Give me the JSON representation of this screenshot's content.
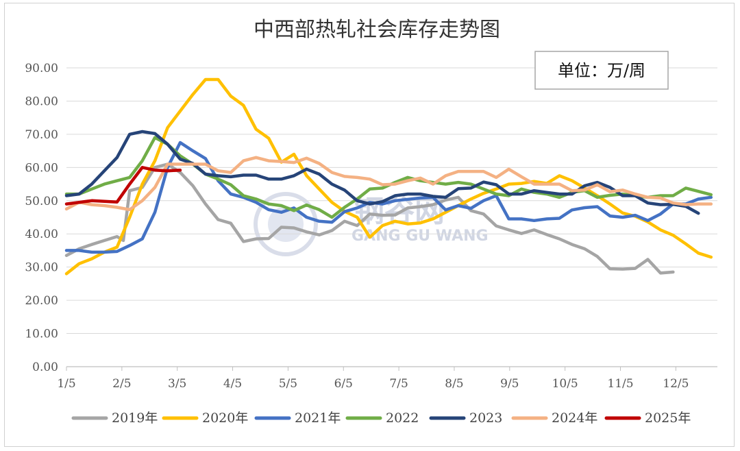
{
  "chart_data": {
    "type": "line",
    "title": "中西部热轧社会库存走势图",
    "unit_note": "单位：万/周",
    "watermark": "钢谷网",
    "watermark_sub": "GANG GU WANG",
    "xlabel": "",
    "ylabel": "",
    "x_ticks": [
      "1/5",
      "2/5",
      "3/5",
      "4/5",
      "5/5",
      "6/5",
      "7/5",
      "8/5",
      "9/5",
      "10/5",
      "11/5",
      "12/5"
    ],
    "y_ticks": [
      "0.00",
      "10.00",
      "20.00",
      "30.00",
      "40.00",
      "50.00",
      "60.00",
      "70.00",
      "80.00",
      "90.00"
    ],
    "ylim": [
      0,
      90
    ],
    "xlim_weeks": [
      0,
      51.5
    ],
    "grid": "horizontal",
    "legend_position": "bottom",
    "series": [
      {
        "name": "2019年",
        "color": "#a5a5a5",
        "x": [
          0,
          1,
          2,
          3,
          4,
          4.5,
          5,
          6,
          7,
          8,
          9,
          10,
          11,
          12,
          13,
          14,
          15,
          16,
          17,
          18,
          19,
          20,
          21,
          22,
          23,
          24,
          25,
          26,
          27,
          28,
          29,
          30,
          31,
          32,
          33,
          34,
          35,
          36,
          37,
          38,
          39,
          40,
          41,
          42,
          43,
          44,
          45,
          46,
          47,
          48,
          49
        ],
        "y": [
          33.5,
          35.5,
          36.8,
          38,
          39.2,
          38,
          53,
          54,
          60,
          61,
          58.5,
          54.5,
          49,
          44.3,
          43.2,
          37.7,
          38.5,
          38.6,
          42,
          41.8,
          40.6,
          39.7,
          41,
          43.8,
          42.5,
          46,
          45.6,
          45.7,
          47.8,
          48.2,
          48.8,
          50.2,
          51,
          47,
          46,
          42.4,
          41.2,
          40.1,
          41.2,
          39.8,
          38.5,
          36.8,
          35.5,
          33.2,
          29.5,
          29.4,
          29.6,
          32.3,
          28.2,
          28.5,
          null
        ]
      },
      {
        "name": "2020年",
        "color": "#ffc000",
        "x": [
          0,
          1,
          2,
          3,
          4,
          5,
          6,
          7,
          8,
          9,
          10,
          11,
          12,
          13,
          14,
          15,
          16,
          17,
          18,
          19,
          20,
          21,
          22,
          23,
          24,
          25,
          26,
          27,
          28,
          29,
          30,
          31,
          32,
          33,
          34,
          35,
          36,
          37,
          38,
          39,
          40,
          41,
          42,
          43,
          44,
          45,
          46,
          47,
          48,
          49,
          50,
          51
        ],
        "y": [
          28,
          31,
          32.5,
          34.5,
          36,
          45,
          55,
          62,
          72,
          77,
          82,
          86.5,
          86.5,
          81.5,
          78.7,
          71.5,
          68.8,
          61.6,
          64,
          57.5,
          53.5,
          49.5,
          46.8,
          45,
          39,
          42.5,
          43.8,
          43,
          43.3,
          44.5,
          46.5,
          48.5,
          50.5,
          52.2,
          53.5,
          55,
          55.2,
          55.8,
          55.2,
          57.5,
          56,
          53.8,
          51.5,
          49,
          46.3,
          45.3,
          43.6,
          41.2,
          39.6,
          37,
          34.2,
          33
        ]
      },
      {
        "name": "2021年",
        "color": "#4472c4",
        "x": [
          0,
          1,
          2,
          3,
          4,
          5,
          6,
          7,
          8,
          9,
          10,
          11,
          12,
          13,
          14,
          15,
          16,
          17,
          18,
          19,
          20,
          21,
          22,
          23,
          24,
          25,
          26,
          27,
          28,
          29,
          30,
          31,
          32,
          33,
          34,
          35,
          36,
          37,
          38,
          39,
          40,
          41,
          42,
          43,
          44,
          45,
          46,
          47,
          48,
          49,
          50,
          51
        ],
        "y": [
          35,
          35,
          34.5,
          34.5,
          34.7,
          36.5,
          38.5,
          46.5,
          60,
          67.5,
          65,
          62.7,
          56,
          52,
          51,
          49.5,
          47.3,
          46.5,
          47.8,
          45,
          43.8,
          43.5,
          46.7,
          47.8,
          49.5,
          49,
          50,
          50.4,
          50.8,
          51,
          47.2,
          48.5,
          47.7,
          50,
          51.5,
          44.5,
          44.5,
          44,
          44.5,
          44.7,
          47.2,
          47.9,
          48.2,
          45.4,
          45,
          45.6,
          44,
          46,
          49,
          49,
          50.5,
          51
        ]
      },
      {
        "name": "2022",
        "color": "#70ad47",
        "x": [
          0,
          1,
          2,
          3,
          4,
          5,
          6,
          7,
          8,
          9,
          10,
          11,
          12,
          13,
          14,
          15,
          16,
          17,
          18,
          19,
          20,
          21,
          22,
          23,
          24,
          25,
          26,
          27,
          28,
          29,
          30,
          31,
          32,
          33,
          34,
          35,
          36,
          37,
          38,
          39,
          40,
          41,
          42,
          43,
          44,
          45,
          46,
          47,
          48,
          49,
          50,
          51
        ],
        "y": [
          52,
          52,
          53.5,
          55,
          56,
          57,
          62,
          69,
          67,
          63.5,
          61,
          58,
          56.5,
          54.8,
          51.5,
          50.5,
          49,
          48.5,
          47,
          48.7,
          47.3,
          45,
          48,
          50.5,
          53.5,
          53.8,
          55.5,
          57,
          56,
          55.5,
          55,
          55.5,
          55,
          53.5,
          52,
          51.5,
          53.5,
          52.5,
          52,
          51,
          52.5,
          53,
          51,
          51.6,
          52,
          51.5,
          51,
          51.5,
          51.5,
          53.8,
          52.8,
          51.8
        ]
      },
      {
        "name": "2023",
        "color": "#264478",
        "x": [
          0,
          1,
          2,
          3,
          4,
          5,
          6,
          7,
          8,
          9,
          10,
          11,
          12,
          13,
          14,
          15,
          16,
          17,
          18,
          19,
          20,
          21,
          22,
          23,
          24,
          25,
          26,
          27,
          28,
          29,
          30,
          31,
          32,
          33,
          34,
          35,
          36,
          37,
          38,
          39,
          40,
          41,
          42,
          43,
          44,
          45,
          46,
          47,
          48,
          49,
          50
        ],
        "y": [
          51.5,
          52,
          55,
          59,
          63,
          70,
          70.8,
          70.2,
          67,
          62.5,
          61.2,
          58,
          57.5,
          57.2,
          57.7,
          57.7,
          56.5,
          56.5,
          57.5,
          59.5,
          58,
          55,
          53.2,
          50,
          49,
          49.7,
          51.5,
          52,
          52,
          51.3,
          51,
          53.6,
          53.8,
          55.6,
          54.8,
          52,
          52,
          53,
          52.5,
          52,
          52,
          54.5,
          55.5,
          54,
          51.5,
          51.5,
          49.3,
          48.8,
          48.9,
          48.3,
          46.2
        ]
      },
      {
        "name": "2024年",
        "color": "#f4b183",
        "x": [
          0,
          1,
          2,
          3,
          4,
          5,
          6,
          7,
          8,
          9,
          10,
          11,
          12,
          13,
          14,
          15,
          16,
          17,
          18,
          19,
          20,
          21,
          22,
          23,
          24,
          25,
          26,
          27,
          28,
          29,
          30,
          31,
          32,
          33,
          34,
          35,
          36,
          37,
          38,
          39,
          40,
          41,
          42,
          43,
          44,
          45,
          46,
          47,
          48,
          49,
          50,
          51
        ],
        "y": [
          47.5,
          49.5,
          48.8,
          48.5,
          48,
          47.3,
          50,
          54,
          61,
          61,
          61,
          61,
          59,
          58.5,
          62,
          63,
          62,
          61.8,
          61.5,
          62.8,
          61.2,
          58.5,
          57.3,
          57,
          56.5,
          54.8,
          55,
          56,
          56.8,
          55,
          57.5,
          58.8,
          58.8,
          58.8,
          57,
          59.5,
          57.2,
          55,
          55,
          55,
          53,
          53.2,
          54.8,
          52.7,
          53.2,
          52,
          51,
          50.8,
          49.3,
          48.8,
          49,
          49
        ]
      },
      {
        "name": "2025年",
        "color": "#c00000",
        "x": [
          0,
          1,
          2,
          3,
          4,
          5,
          6,
          7,
          8,
          9
        ],
        "y": [
          49,
          49.5,
          50,
          49.8,
          49.6,
          55,
          60,
          59.2,
          59,
          59.2
        ]
      }
    ]
  }
}
